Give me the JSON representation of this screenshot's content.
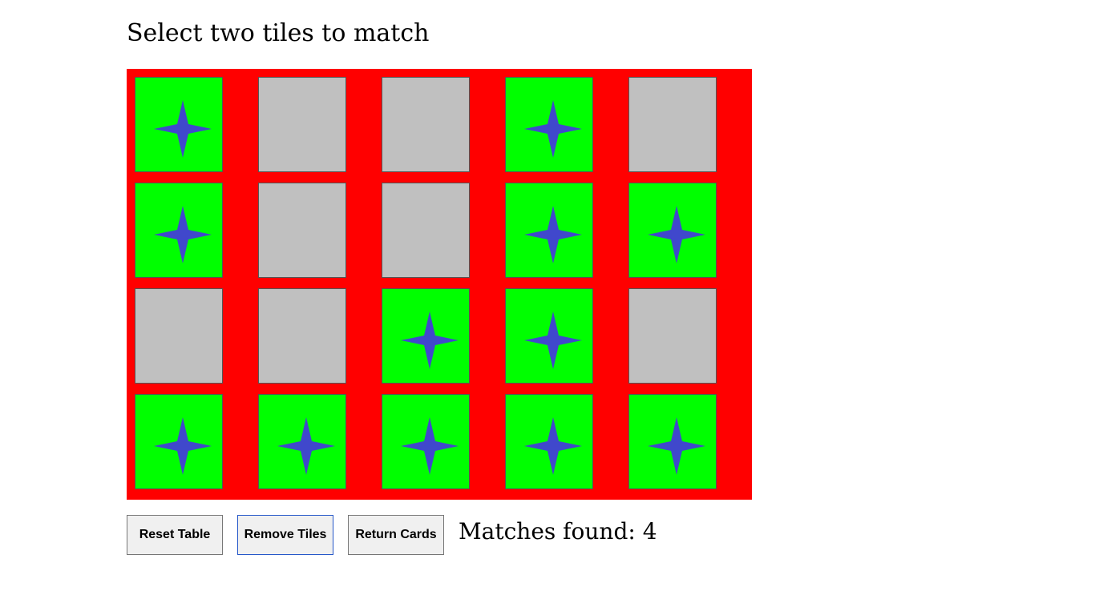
{
  "title": "Select two tiles to match",
  "colors": {
    "board": "#ff0000",
    "tile_hidden": "#c0c0c0",
    "tile_revealed": "#00ff00",
    "star": "#4048cc"
  },
  "board": {
    "rows": 4,
    "cols": 5,
    "tile_icon": "four-point-star-icon",
    "tiles": [
      [
        "revealed",
        "hidden",
        "hidden",
        "revealed",
        "hidden"
      ],
      [
        "revealed",
        "hidden",
        "hidden",
        "revealed",
        "revealed"
      ],
      [
        "hidden",
        "hidden",
        "revealed",
        "revealed",
        "hidden"
      ],
      [
        "revealed",
        "revealed",
        "revealed",
        "revealed",
        "revealed"
      ]
    ]
  },
  "buttons": {
    "reset": "Reset Table",
    "remove": "Remove Tiles",
    "return": "Return Cards"
  },
  "status": {
    "matches_text": "Matches found: 4"
  }
}
